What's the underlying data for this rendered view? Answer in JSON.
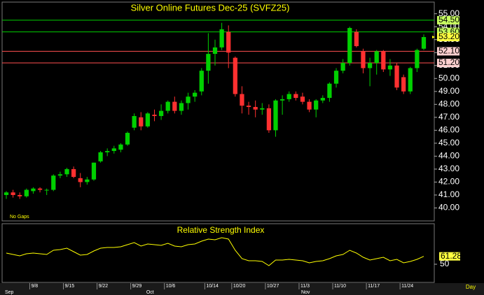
{
  "chart_data": [
    {
      "type": "candlestick",
      "title": "Silver Online Futures Dec-25 (SVFZ25)",
      "note": "No Gaps",
      "interval": "Day",
      "categories": [
        null,
        null,
        null,
        null,
        "9/8",
        null,
        null,
        null,
        null,
        "9/15",
        null,
        null,
        null,
        null,
        "9/22",
        null,
        null,
        null,
        null,
        "9/29",
        null,
        null,
        null,
        null,
        "10/6",
        null,
        null,
        null,
        null,
        null,
        "10/14",
        null,
        null,
        null,
        "10/20",
        null,
        null,
        null,
        null,
        "10/27",
        null,
        null,
        null,
        null,
        "11/3",
        null,
        null,
        null,
        null,
        "11/10",
        null,
        null,
        null,
        null,
        "11/17",
        null,
        null,
        null,
        null,
        "11/24",
        null,
        null,
        null
      ],
      "month_labels": [
        "Sep",
        null,
        null,
        null,
        null,
        null,
        null,
        null,
        null,
        null,
        null,
        null,
        null,
        null,
        null,
        null,
        null,
        null,
        null,
        null,
        null,
        "Oct",
        null,
        null,
        null,
        null,
        null,
        null,
        null,
        null,
        null,
        null,
        null,
        null,
        null,
        null,
        null,
        null,
        null,
        null,
        null,
        null,
        null,
        null,
        "Nov",
        null,
        null,
        null,
        null,
        null,
        null,
        null,
        null,
        null,
        null,
        null,
        null,
        null,
        null,
        null,
        null,
        null,
        null
      ],
      "open": [
        41.0,
        41.2,
        41.0,
        40.9,
        41.3,
        41.5,
        41.4,
        41.4,
        42.5,
        42.6,
        43.0,
        42.3,
        42.0,
        42.2,
        43.6,
        44.3,
        44.4,
        44.5,
        44.9,
        46.2,
        47.0,
        46.3,
        47.2,
        47.1,
        47.5,
        48.2,
        47.5,
        48.1,
        48.6,
        49.0,
        50.6,
        51.9,
        52.4,
        53.6,
        51.6,
        48.8,
        47.9,
        47.8,
        47.6,
        47.7,
        46.0,
        48.3,
        48.4,
        48.8,
        48.6,
        48.2,
        47.6,
        48.3,
        48.5,
        49.6,
        50.6,
        51.2,
        53.6,
        52.1,
        50.8,
        51.2,
        52.1,
        50.7,
        51.0,
        50.1,
        49.0,
        50.8,
        52.3
      ],
      "high": [
        41.3,
        41.4,
        41.2,
        41.5,
        41.6,
        41.6,
        41.5,
        42.6,
        42.8,
        43.1,
        43.2,
        42.7,
        42.4,
        43.5,
        44.4,
        44.6,
        44.8,
        45.0,
        45.9,
        47.3,
        47.4,
        47.4,
        47.6,
        48.0,
        48.3,
        48.6,
        48.3,
        48.9,
        49.1,
        50.8,
        53.5,
        53.0,
        54.3,
        54.1,
        51.7,
        49.4,
        48.2,
        48.3,
        48.1,
        48.0,
        48.4,
        48.7,
        49.0,
        49.0,
        48.9,
        48.4,
        48.4,
        48.7,
        49.7,
        50.8,
        51.5,
        54.0,
        53.8,
        52.3,
        51.6,
        52.2,
        52.2,
        51.5,
        51.2,
        50.3,
        50.9,
        52.3,
        53.4
      ],
      "low": [
        40.7,
        40.8,
        40.7,
        40.8,
        41.1,
        41.2,
        41.0,
        41.3,
        42.3,
        42.4,
        42.3,
        41.6,
        41.8,
        42.1,
        43.5,
        44.0,
        44.2,
        44.3,
        44.8,
        46.0,
        46.0,
        46.2,
        46.7,
        46.8,
        47.3,
        47.3,
        47.2,
        47.6,
        48.2,
        48.7,
        49.6,
        51.0,
        52.2,
        50.8,
        48.6,
        47.3,
        47.2,
        47.0,
        47.2,
        45.8,
        45.5,
        47.2,
        48.2,
        48.3,
        48.0,
        47.4,
        47.0,
        48.1,
        48.2,
        49.3,
        50.4,
        51.0,
        52.4,
        50.4,
        49.4,
        50.3,
        50.5,
        50.2,
        49.1,
        48.8,
        48.8,
        50.5,
        52.2
      ],
      "close": [
        41.2,
        41.0,
        40.9,
        41.4,
        41.5,
        41.4,
        41.4,
        42.5,
        42.6,
        43.0,
        42.4,
        42.0,
        42.2,
        43.5,
        44.3,
        44.4,
        44.6,
        44.9,
        45.8,
        47.1,
        46.3,
        47.3,
        47.1,
        47.5,
        48.2,
        47.5,
        48.1,
        48.6,
        48.9,
        50.6,
        51.9,
        52.4,
        53.8,
        52.0,
        48.8,
        47.9,
        47.8,
        47.6,
        47.7,
        46.0,
        48.3,
        48.4,
        48.8,
        48.5,
        48.2,
        47.6,
        48.3,
        48.5,
        49.6,
        50.6,
        51.2,
        53.9,
        52.5,
        50.8,
        51.2,
        52.1,
        50.7,
        51.0,
        49.3,
        49.0,
        50.8,
        52.2,
        53.2
      ],
      "up_color": "#00d000",
      "down_color": "#ff3030",
      "ylim": [
        39,
        55.9
      ],
      "yticks": [
        {
          "value": 40,
          "label": "40.00"
        },
        {
          "value": 41,
          "label": "41.00"
        },
        {
          "value": 42,
          "label": "42.00"
        },
        {
          "value": 43,
          "label": "43.00"
        },
        {
          "value": 44,
          "label": "44.00"
        },
        {
          "value": 45,
          "label": "45.00"
        },
        {
          "value": 46,
          "label": "46.00"
        },
        {
          "value": 47,
          "label": "47.00"
        },
        {
          "value": 48,
          "label": "48.00"
        },
        {
          "value": 49,
          "label": "49.00"
        },
        {
          "value": 50,
          "label": "50.00"
        },
        {
          "value": 51,
          "label": "51.00"
        },
        {
          "value": 52,
          "label": "52.00"
        },
        {
          "value": 53,
          "label": "53.00"
        },
        {
          "value": 54,
          "label": "54.00"
        },
        {
          "value": 55,
          "label": "55.00"
        }
      ],
      "levels": [
        {
          "value": 54.5,
          "label": "54.50",
          "color": "#00d000",
          "bg": "#c8ff60"
        },
        {
          "value": 53.6,
          "label": "53.60",
          "color": "#00d000",
          "bg": "#c8ff60"
        },
        {
          "value": 52.1,
          "label": "52.10",
          "color": "#ff5050",
          "bg": "#ffd0d0"
        },
        {
          "value": 51.2,
          "label": "51.20",
          "color": "#ff5050",
          "bg": "#ffd0d0"
        }
      ],
      "last_price": {
        "value": 53.2,
        "label": "53.20",
        "bg": "#ffff40"
      }
    },
    {
      "type": "line",
      "title": "Relative Strength Index",
      "color": "#ffff00",
      "values": [
        66,
        64,
        62,
        65,
        66,
        65,
        64,
        70,
        71,
        73,
        68,
        63,
        64,
        69,
        73,
        74,
        74,
        75,
        78,
        81,
        76,
        79,
        78,
        77,
        80,
        76,
        75,
        78,
        79,
        83,
        86,
        85,
        88,
        86,
        70,
        58,
        55,
        55,
        54,
        48,
        56,
        56,
        57,
        56,
        55,
        52,
        54,
        55,
        58,
        62,
        64,
        70,
        66,
        60,
        56,
        58,
        60,
        55,
        57,
        52,
        54,
        57,
        61.28
      ],
      "ylim": [
        24,
        108
      ],
      "yticks": [
        50
      ],
      "last_bg": "#ffff40"
    }
  ]
}
